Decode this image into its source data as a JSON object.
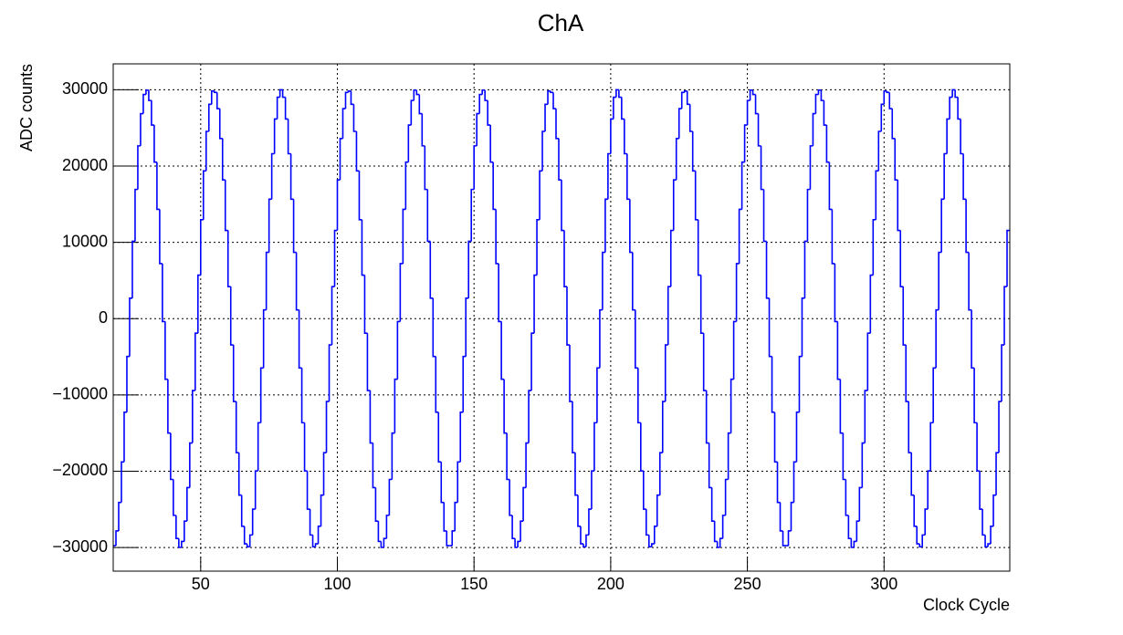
{
  "chart_data": {
    "type": "histogram",
    "title": "ChA",
    "x_label": "Clock Cycle",
    "y_label": "ADC counts",
    "color": "#0000ff",
    "grid": true,
    "xlim": [
      18,
      346
    ],
    "ylim": [
      -33100,
      33400
    ],
    "xticks": [
      50,
      100,
      150,
      200,
      250,
      300
    ],
    "yticks": [
      {
        "value": -30000,
        "label": "−30000"
      },
      {
        "value": -20000,
        "label": "−20000"
      },
      {
        "value": -10000,
        "label": "−10000"
      },
      0,
      10000,
      20000,
      30000
    ],
    "bins": [
      18,
      19,
      20,
      21,
      22,
      23,
      24,
      25,
      26,
      27,
      28,
      29,
      30,
      31,
      32,
      33,
      34,
      35,
      36,
      37,
      38,
      39,
      40,
      41,
      42,
      43,
      44,
      45,
      46,
      47,
      48,
      49,
      50,
      51,
      52,
      53,
      54,
      55,
      56,
      57,
      58,
      59,
      60,
      61,
      62,
      63,
      64,
      65,
      66,
      67,
      68,
      69,
      70,
      71,
      72,
      73,
      74,
      75,
      76,
      77,
      78,
      79,
      80,
      81,
      82,
      83,
      84,
      85,
      86,
      87,
      88,
      89,
      90,
      91,
      92,
      93,
      94,
      95,
      96,
      97,
      98,
      99,
      100,
      101,
      102,
      103,
      104,
      105,
      106,
      107,
      108,
      109,
      110,
      111,
      112,
      113,
      114,
      115,
      116,
      117,
      118,
      119,
      120,
      121,
      122,
      123,
      124,
      125,
      126,
      127,
      128,
      129,
      130,
      131,
      132,
      133,
      134,
      135,
      136,
      137,
      138,
      139,
      140,
      141,
      142,
      143,
      144,
      145,
      146,
      147,
      148,
      149,
      150,
      151,
      152,
      153,
      154,
      155,
      156,
      157,
      158,
      159,
      160,
      161,
      162,
      163,
      164,
      165,
      166,
      167,
      168,
      169,
      170,
      171,
      172,
      173,
      174,
      175,
      176,
      177,
      178,
      179,
      180,
      181,
      182,
      183,
      184,
      185,
      186,
      187,
      188,
      189,
      190,
      191,
      192,
      193,
      194,
      195,
      196,
      197,
      198,
      199,
      200,
      201,
      202,
      203,
      204,
      205,
      206,
      207,
      208,
      209,
      210,
      211,
      212,
      213,
      214,
      215,
      216,
      217,
      218,
      219,
      220,
      221,
      222,
      223,
      224,
      225,
      226,
      227,
      228,
      229,
      230,
      231,
      232,
      233,
      234,
      235,
      236,
      237,
      238,
      239,
      240,
      241,
      242,
      243,
      244,
      245,
      246,
      247,
      248,
      249,
      250,
      251,
      252,
      253,
      254,
      255,
      256,
      257,
      258,
      259,
      260,
      261,
      262,
      263,
      264,
      265,
      266,
      267,
      268,
      269,
      270,
      271,
      272,
      273,
      274,
      275,
      276,
      277,
      278,
      279,
      280,
      281,
      282,
      283,
      284,
      285,
      286,
      287,
      288,
      289,
      290,
      291,
      292,
      293,
      294,
      295,
      296,
      297,
      298,
      299,
      300,
      301,
      302,
      303,
      304,
      305,
      306,
      307,
      308,
      309,
      310,
      311,
      312,
      313,
      314,
      315,
      316,
      317,
      318,
      319,
      320,
      321,
      322,
      323,
      324,
      325,
      326,
      327,
      328,
      329,
      330,
      331,
      332,
      333,
      334,
      335,
      336,
      337,
      338,
      339,
      340,
      341,
      342,
      343,
      344,
      345,
      346
    ],
    "values": [
      -29760,
      -27830,
      -24090,
      -18780,
      -12270,
      -4960,
      2680,
      10140,
      16940,
      22650,
      26880,
      29380,
      29960,
      28600,
      25380,
      20520,
      14330,
      7210,
      -380,
      -7950,
      -15000,
      -21080,
      -25790,
      -28820,
      -29990,
      -29210,
      -26540,
      -22150,
      -16300,
      -9420,
      -1910,
      5710,
      12970,
      19370,
      24550,
      28100,
      29840,
      29650,
      27530,
      23620,
      18190,
      11570,
      4200,
      -3440,
      -10860,
      -17570,
      -23140,
      -27220,
      -29520,
      -29910,
      -28360,
      -24970,
      -19960,
      -13650,
      -6460,
      1150,
      8690,
      15660,
      21620,
      26170,
      29030,
      30000,
      29030,
      26170,
      21620,
      15660,
      8690,
      1150,
      -6460,
      -13650,
      -19960,
      -24970,
      -28360,
      -29910,
      -29520,
      -27220,
      -23140,
      -17570,
      -10860,
      -3440,
      4200,
      11570,
      18190,
      23620,
      27530,
      29650,
      29840,
      28100,
      24550,
      19370,
      12970,
      5710,
      -1910,
      -9420,
      -16300,
      -22150,
      -26540,
      -29210,
      -29990,
      -28820,
      -25790,
      -21080,
      -15000,
      -7950,
      -380,
      7210,
      14330,
      20520,
      25380,
      28600,
      29960,
      29380,
      26880,
      22650,
      16940,
      10140,
      2680,
      -4960,
      -12270,
      -18780,
      -24090,
      -27830,
      -29760,
      -29760,
      -27830,
      -24090,
      -18780,
      -12270,
      -4960,
      2680,
      10140,
      16940,
      22650,
      26880,
      29380,
      29960,
      28600,
      25380,
      20520,
      14330,
      7210,
      -380,
      -7950,
      -15000,
      -21080,
      -25790,
      -28820,
      -29990,
      -29210,
      -26540,
      -22150,
      -16300,
      -9420,
      -1910,
      5710,
      12970,
      19370,
      24550,
      28100,
      29840,
      29650,
      27530,
      23620,
      18190,
      11570,
      4200,
      -3440,
      -10860,
      -17570,
      -23140,
      -27220,
      -29520,
      -29910,
      -28360,
      -24970,
      -19960,
      -13650,
      -6460,
      1150,
      8690,
      15660,
      21620,
      26170,
      29030,
      30000,
      29030,
      26170,
      21620,
      15660,
      8690,
      1150,
      -6460,
      -13650,
      -19960,
      -24970,
      -28360,
      -29910,
      -29520,
      -27220,
      -23140,
      -17570,
      -10860,
      -3440,
      4200,
      11570,
      18190,
      23620,
      27530,
      29650,
      29840,
      28100,
      24550,
      19370,
      12970,
      5710,
      -1910,
      -9420,
      -16300,
      -22150,
      -26540,
      -29210,
      -29990,
      -28820,
      -25790,
      -21080,
      -15000,
      -7950,
      -380,
      7210,
      14330,
      20520,
      25380,
      28600,
      29960,
      29380,
      26880,
      22650,
      16940,
      10140,
      2680,
      -4960,
      -12270,
      -18780,
      -24090,
      -27830,
      -29760,
      -29760,
      -27830,
      -24090,
      -18780,
      -12270,
      -4960,
      2680,
      10140,
      16940,
      22650,
      26880,
      29380,
      29960,
      28600,
      25380,
      20520,
      14330,
      7210,
      -380,
      -7950,
      -15000,
      -21080,
      -25790,
      -28820,
      -29990,
      -29210,
      -26540,
      -22150,
      -16300,
      -9420,
      -1910,
      5710,
      12970,
      19370,
      24550,
      28100,
      29840,
      29650,
      27530,
      23620,
      18190,
      11570,
      4200,
      -3440,
      -10860,
      -17570,
      -23140,
      -27220,
      -29520,
      -29910,
      -28360,
      -24970,
      -19960,
      -13650,
      -6460,
      1150,
      8690,
      15660,
      21620,
      26170,
      29030,
      30000,
      29030,
      26170,
      21620,
      15660,
      8690,
      1150,
      -6460,
      -13650,
      -19960,
      -24970,
      -28360,
      -29910,
      -29520,
      -27220,
      -23140,
      -17570,
      -10860,
      -3440,
      4200,
      11570
    ]
  }
}
